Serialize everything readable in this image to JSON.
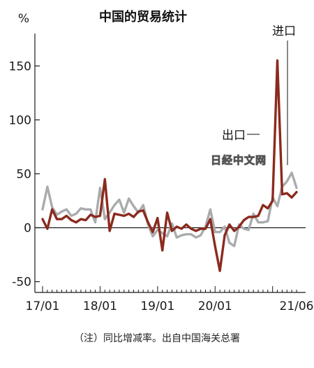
{
  "chart_data": {
    "type": "line",
    "title": "中国的贸易统计",
    "unit_label": "%",
    "ylim": [
      -60,
      180
    ],
    "y_ticks": [
      "-50",
      "0",
      "50",
      "100",
      "150"
    ],
    "x_tick_labels": [
      "17/01",
      "18/01",
      "19/01",
      "20/01",
      "21/06"
    ],
    "grid": false,
    "legend": "inline callouts",
    "x": [
      "2017-01",
      "2017-02",
      "2017-03",
      "2017-04",
      "2017-05",
      "2017-06",
      "2017-07",
      "2017-08",
      "2017-09",
      "2017-10",
      "2017-11",
      "2017-12",
      "2018-01",
      "2018-02",
      "2018-03",
      "2018-04",
      "2018-05",
      "2018-06",
      "2018-07",
      "2018-08",
      "2018-09",
      "2018-10",
      "2018-11",
      "2018-12",
      "2019-01",
      "2019-02",
      "2019-03",
      "2019-04",
      "2019-05",
      "2019-06",
      "2019-07",
      "2019-08",
      "2019-09",
      "2019-10",
      "2019-11",
      "2019-12",
      "2020-01",
      "2020-02",
      "2020-03",
      "2020-04",
      "2020-05",
      "2020-06",
      "2020-07",
      "2020-08",
      "2020-09",
      "2020-10",
      "2020-11",
      "2020-12",
      "2021-01",
      "2021-02",
      "2021-03",
      "2021-04",
      "2021-05",
      "2021-06"
    ],
    "series": [
      {
        "name": "出口",
        "color": "#8b2a1e",
        "values": [
          8,
          -1,
          17,
          8,
          8,
          11,
          7,
          5,
          8,
          7,
          12,
          10,
          11,
          45,
          -3,
          13,
          12,
          11,
          13,
          10,
          15,
          16,
          5,
          -4,
          9,
          -21,
          14,
          -3,
          1,
          -1,
          3,
          -1,
          -3,
          -1,
          -1,
          8,
          -17,
          -40,
          -7,
          3,
          -3,
          1,
          7,
          10,
          10,
          11,
          21,
          18,
          25,
          155,
          31,
          32,
          28,
          33
        ]
      },
      {
        "name": "进口",
        "color": "#a9abad",
        "values": [
          17,
          38,
          19,
          12,
          15,
          17,
          11,
          13,
          18,
          17,
          17,
          5,
          37,
          8,
          14,
          21,
          26,
          14,
          27,
          20,
          14,
          21,
          3,
          -8,
          -2,
          -5,
          -8,
          4,
          -9,
          -7,
          -6,
          -6,
          -9,
          -7,
          1,
          17,
          -4,
          -4,
          1,
          -14,
          -17,
          3,
          -1,
          -2,
          13,
          5,
          5,
          6,
          28,
          20,
          38,
          43,
          51,
          37
        ]
      }
    ]
  },
  "callouts": {
    "export_label": "出口",
    "import_label": "进口"
  },
  "watermark": "日经中文网",
  "footnote": "（注）同比增减率。出自中国海关总署"
}
